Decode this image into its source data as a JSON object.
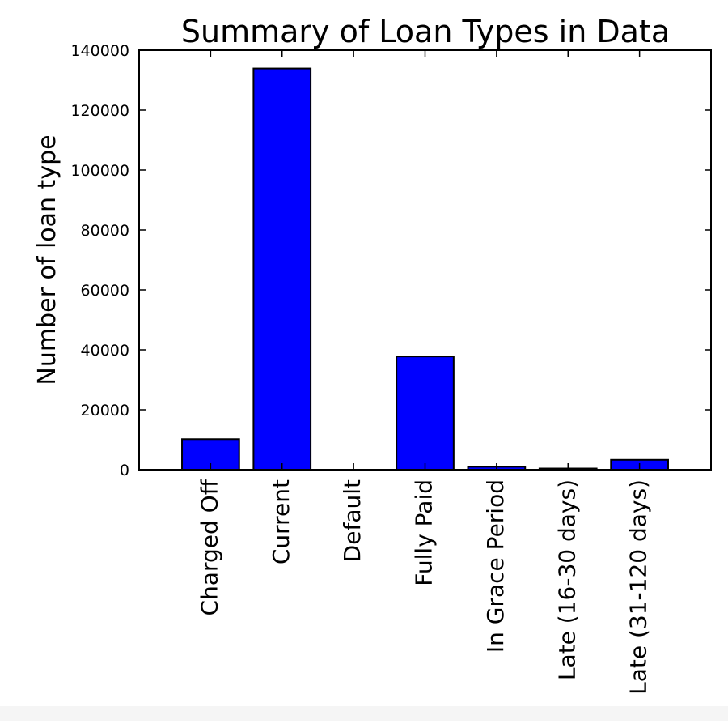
{
  "chart_data": {
    "type": "bar",
    "title": "Summary of Loan Types in Data",
    "xlabel": "",
    "ylabel": "Number of loan type",
    "categories": [
      "Charged Off",
      "Current",
      "Default",
      "Fully Paid",
      "In Grace Period",
      "Late (16-30 days)",
      "Late (31-120 days)"
    ],
    "values": [
      10200,
      133900,
      0,
      37800,
      1000,
      400,
      3300
    ],
    "ylim": [
      0,
      140000
    ],
    "yticks": [
      0,
      20000,
      40000,
      60000,
      80000,
      100000,
      120000,
      140000
    ],
    "ytick_labels": [
      "0",
      "20000",
      "40000",
      "60000",
      "80000",
      "100000",
      "120000",
      "140000"
    ],
    "grid": false,
    "legend": "none",
    "colors": {
      "bar_fill": "#0000ff",
      "bar_stroke": "#000000",
      "axes": "#000000"
    }
  }
}
